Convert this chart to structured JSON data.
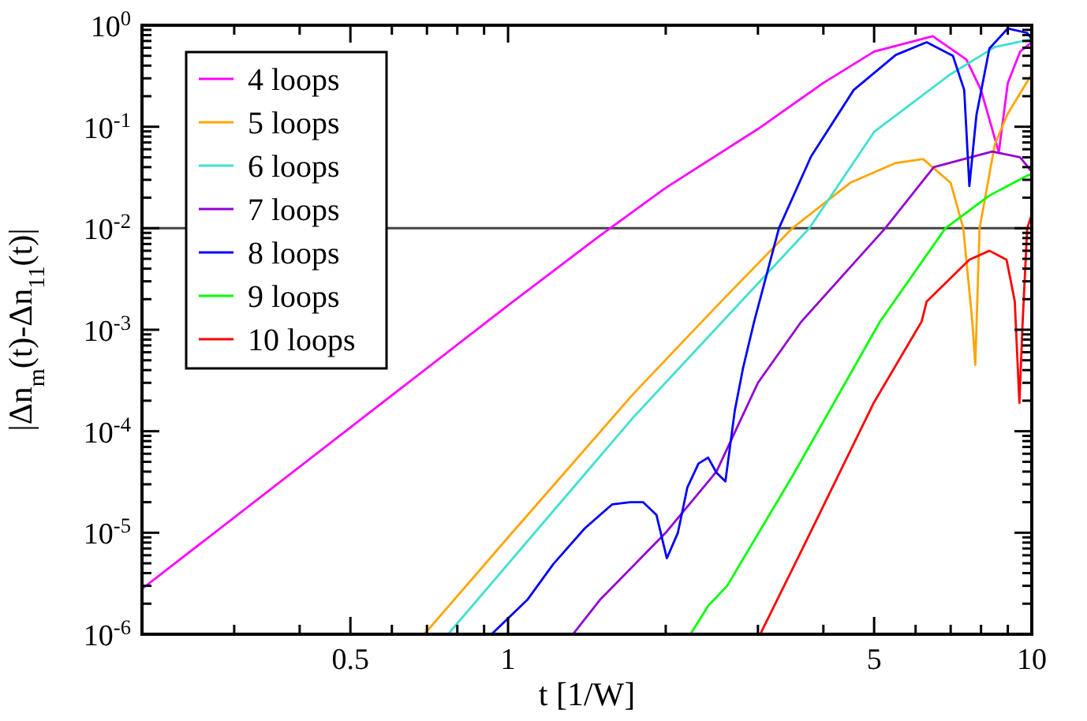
{
  "chart_data": {
    "type": "line",
    "xlabel": "t [1/W]",
    "ylabel": "|Δn$_{m}$(t)-Δn$_{11}$(t)|",
    "log": "xy",
    "grid": false,
    "legend": "top left",
    "line_style": "solid",
    "marker": "none",
    "xlim": [
      0.2,
      10
    ],
    "ylim": [
      1e-06,
      1
    ],
    "xticks": [
      {
        "value": 0.3,
        "label": null
      },
      {
        "value": 0.4,
        "label": null
      },
      0.5,
      {
        "value": 0.6,
        "label": null
      },
      {
        "value": 0.7,
        "label": null
      },
      {
        "value": 0.8,
        "label": null
      },
      {
        "value": 0.9,
        "label": null
      },
      1,
      {
        "value": 2,
        "label": null
      },
      {
        "value": 3,
        "label": null
      },
      {
        "value": 4,
        "label": null
      },
      5,
      {
        "value": 6,
        "label": null
      },
      {
        "value": 7,
        "label": null
      },
      {
        "value": 8,
        "label": null
      },
      {
        "value": 9,
        "label": null
      },
      10
    ],
    "yticks": [
      {
        "value": 1e-06,
        "label": "10$^{-6}$"
      },
      {
        "value": 2e-06,
        "label": null
      },
      {
        "value": 3e-06,
        "label": null
      },
      {
        "value": 4e-06,
        "label": null
      },
      {
        "value": 5e-06,
        "label": null
      },
      {
        "value": 6e-06,
        "label": null
      },
      {
        "value": 7e-06,
        "label": null
      },
      {
        "value": 8e-06,
        "label": null
      },
      {
        "value": 9e-06,
        "label": null
      },
      {
        "value": 1e-05,
        "label": "10$^{-5}$"
      },
      {
        "value": 2e-05,
        "label": null
      },
      {
        "value": 3e-05,
        "label": null
      },
      {
        "value": 4e-05,
        "label": null
      },
      {
        "value": 5e-05,
        "label": null
      },
      {
        "value": 6e-05,
        "label": null
      },
      {
        "value": 7e-05,
        "label": null
      },
      {
        "value": 8e-05,
        "label": null
      },
      {
        "value": 9e-05,
        "label": null
      },
      {
        "value": 0.0001,
        "label": "10$^{-4}$"
      },
      {
        "value": 0.0002,
        "label": null
      },
      {
        "value": 0.0003,
        "label": null
      },
      {
        "value": 0.0004,
        "label": null
      },
      {
        "value": 0.0005,
        "label": null
      },
      {
        "value": 0.0006,
        "label": null
      },
      {
        "value": 0.0007,
        "label": null
      },
      {
        "value": 0.0008,
        "label": null
      },
      {
        "value": 0.0009,
        "label": null
      },
      {
        "value": 0.001,
        "label": "10$^{-3}$"
      },
      {
        "value": 0.002,
        "label": null
      },
      {
        "value": 0.003,
        "label": null
      },
      {
        "value": 0.004,
        "label": null
      },
      {
        "value": 0.005,
        "label": null
      },
      {
        "value": 0.006,
        "label": null
      },
      {
        "value": 0.007,
        "label": null
      },
      {
        "value": 0.008,
        "label": null
      },
      {
        "value": 0.009,
        "label": null
      },
      {
        "value": 0.01,
        "label": "10$^{-2}$"
      },
      {
        "value": 0.02,
        "label": null
      },
      {
        "value": 0.03,
        "label": null
      },
      {
        "value": 0.04,
        "label": null
      },
      {
        "value": 0.05,
        "label": null
      },
      {
        "value": 0.06,
        "label": null
      },
      {
        "value": 0.07,
        "label": null
      },
      {
        "value": 0.08,
        "label": null
      },
      {
        "value": 0.09,
        "label": null
      },
      {
        "value": 0.1,
        "label": "10$^{-1}$"
      },
      {
        "value": 0.2,
        "label": null
      },
      {
        "value": 0.3,
        "label": null
      },
      {
        "value": 0.4,
        "label": null
      },
      {
        "value": 0.5,
        "label": null
      },
      {
        "value": 0.6,
        "label": null
      },
      {
        "value": 0.7,
        "label": null
      },
      {
        "value": 0.8,
        "label": null
      },
      {
        "value": 0.9,
        "label": null
      },
      {
        "value": 1,
        "label": "10$^{0}$"
      }
    ],
    "ref_lines": [
      {
        "axis": "y",
        "value": 0.01,
        "color": "#444444",
        "line_style": "solid"
      }
    ],
    "series": [
      {
        "name": "4 loops",
        "color": "#ff00ff",
        "x": [
          0.2,
          0.5,
          1,
          1.5,
          2,
          3,
          4,
          5,
          6.47,
          7.5,
          8,
          8.65,
          9,
          9.5,
          10
        ],
        "values": [
          2.8e-06,
          0.000109,
          0.00174,
          0.0085,
          0.025,
          0.095,
          0.27,
          0.55,
          0.78,
          0.46,
          0.23,
          0.056,
          0.27,
          0.55,
          0.68
        ]
      },
      {
        "name": "5 loops",
        "color": "#ffa500",
        "x": [
          0.692,
          1,
          1.73,
          2.5,
          3.49,
          4.5,
          5.5,
          6.2,
          7,
          7.4,
          7.7,
          7.8,
          7.95,
          8.5,
          9,
          10
        ],
        "values": [
          1e-06,
          9e-06,
          0.00023,
          0.0017,
          0.01,
          0.028,
          0.044,
          0.048,
          0.028,
          0.01,
          0.0012,
          0.00045,
          0.01,
          0.067,
          0.135,
          0.33
        ]
      },
      {
        "name": "6 loops",
        "color": "#40e0d0",
        "x": [
          0.768,
          1.73,
          3.76,
          5,
          7,
          8.5,
          10
        ],
        "values": [
          1e-06,
          0.000135,
          0.01,
          0.089,
          0.33,
          0.61,
          0.73
        ]
      },
      {
        "name": "7 loops",
        "color": "#9400d3",
        "x": [
          1.33,
          1.5,
          2,
          2.5,
          3,
          3.63,
          5.25,
          6.5,
          8.4,
          9.5,
          10
        ],
        "values": [
          1e-06,
          2.2e-06,
          1e-05,
          4e-05,
          0.0003,
          0.0012,
          0.01,
          0.04,
          0.057,
          0.05,
          0.036
        ]
      },
      {
        "name": "8 loops",
        "color": "#0000ff",
        "x": [
          0.93,
          1.09,
          1.22,
          1.4,
          1.58,
          1.71,
          1.81,
          1.92,
          2.01,
          2.11,
          2.2,
          2.31,
          2.41,
          2.5,
          2.6,
          2.71,
          2.81,
          2.95,
          3.29,
          3.79,
          4.57,
          5.5,
          6.3,
          7.07,
          7.43,
          7.6,
          7.84,
          8.3,
          9,
          9.8,
          10
        ],
        "values": [
          1e-06,
          2.2e-06,
          4.9e-06,
          1.1e-05,
          1.9e-05,
          2e-05,
          2e-05,
          1.5e-05,
          5.6e-06,
          1e-05,
          2.8e-05,
          4.8e-05,
          5.5e-05,
          3.9e-05,
          3.2e-05,
          0.00016,
          0.00042,
          0.0012,
          0.01,
          0.051,
          0.23,
          0.51,
          0.68,
          0.5,
          0.23,
          0.026,
          0.13,
          0.59,
          0.93,
          0.84,
          0.73
        ]
      },
      {
        "name": "9 loops",
        "color": "#00ff00",
        "x": [
          2.23,
          2.41,
          2.62,
          3.5,
          5.13,
          6.84,
          8.3,
          9.8,
          10
        ],
        "values": [
          1e-06,
          1.9e-06,
          3e-06,
          3.7e-05,
          0.0012,
          0.01,
          0.021,
          0.033,
          0.034
        ]
      },
      {
        "name": "10 loops",
        "color": "#ff0000",
        "x": [
          3.03,
          3.63,
          4.99,
          6.16,
          6.3,
          7.6,
          8.3,
          8.95,
          9.28,
          9.47,
          9.6,
          9.8,
          9.97
        ],
        "values": [
          1e-06,
          6.6e-06,
          0.00019,
          0.0012,
          0.0019,
          0.0049,
          0.006,
          0.0049,
          0.0019,
          0.00019,
          0.0011,
          0.01,
          0.013
        ]
      }
    ]
  }
}
